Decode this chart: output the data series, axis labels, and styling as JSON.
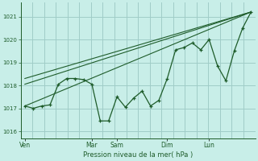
{
  "background_color": "#c8eee8",
  "grid_color": "#a0ccc8",
  "line_color": "#1e5c2a",
  "xlabel": "Pression niveau de la mer( hPa )",
  "ylim": [
    1015.7,
    1021.6
  ],
  "yticks": [
    1016,
    1017,
    1018,
    1019,
    1020,
    1021
  ],
  "x_tick_labels": [
    "Ven",
    "Mar",
    "Sam",
    "Dim",
    "Lun"
  ],
  "x_tick_positions": [
    0,
    8,
    11,
    17,
    22
  ],
  "xlim": [
    -0.5,
    27.5
  ],
  "main_line": [
    [
      0,
      1017.1
    ],
    [
      1,
      1017.0
    ],
    [
      2,
      1017.1
    ],
    [
      3,
      1017.15
    ],
    [
      4,
      1018.05
    ],
    [
      5,
      1018.3
    ],
    [
      6,
      1018.3
    ],
    [
      7,
      1018.25
    ],
    [
      8,
      1018.05
    ],
    [
      9,
      1016.45
    ],
    [
      10,
      1016.45
    ],
    [
      11,
      1017.5
    ],
    [
      12,
      1017.05
    ],
    [
      13,
      1017.45
    ],
    [
      14,
      1017.75
    ],
    [
      15,
      1017.1
    ],
    [
      16,
      1017.35
    ],
    [
      17,
      1018.3
    ],
    [
      18,
      1019.55
    ],
    [
      19,
      1019.65
    ],
    [
      20,
      1019.85
    ],
    [
      21,
      1019.55
    ],
    [
      22,
      1020.0
    ],
    [
      23,
      1018.85
    ],
    [
      24,
      1018.2
    ],
    [
      25,
      1019.5
    ],
    [
      26,
      1020.5
    ],
    [
      27,
      1021.2
    ]
  ],
  "trend_line1": [
    [
      0,
      1017.1
    ],
    [
      27,
      1021.2
    ]
  ],
  "trend_line2": [
    [
      0,
      1018.05
    ],
    [
      27,
      1021.2
    ]
  ],
  "trend_line3": [
    [
      0,
      1018.3
    ],
    [
      27,
      1021.2
    ]
  ]
}
